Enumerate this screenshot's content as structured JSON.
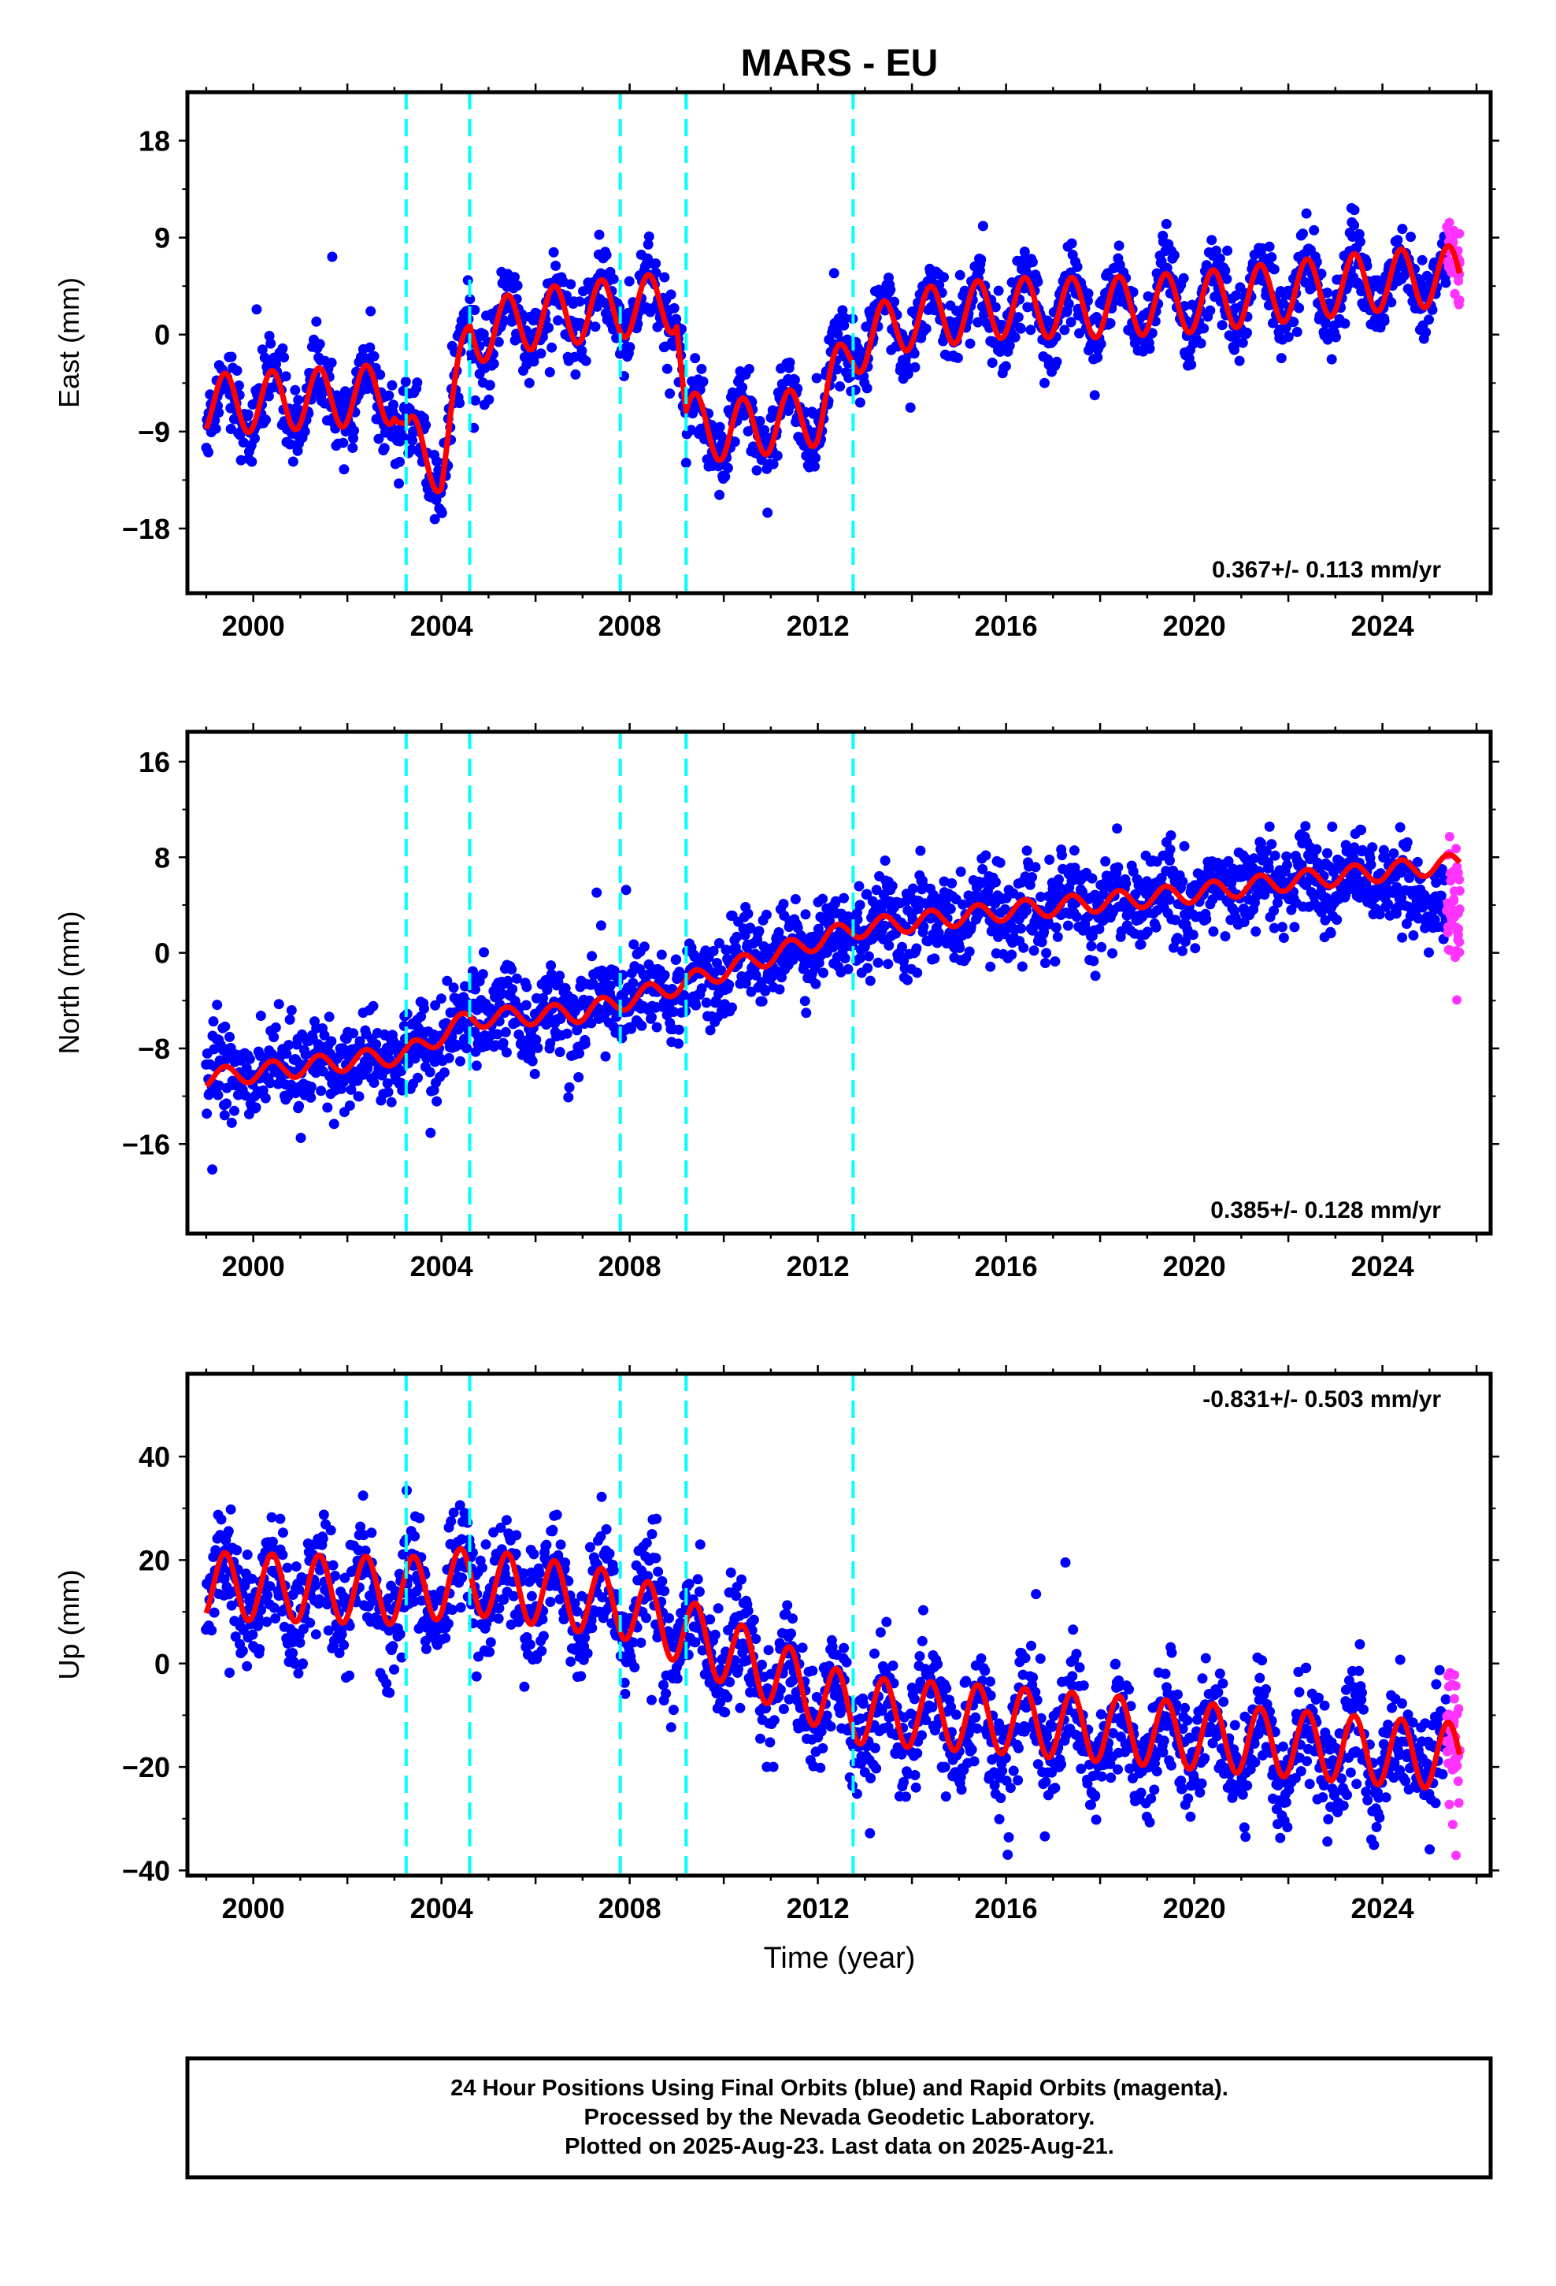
{
  "title": "MARS - EU",
  "xlabel": "Time (year)",
  "footer": [
    "24 Hour Positions Using Final Orbits (blue) and Rapid Orbits (magenta).",
    "Processed by the Nevada Geodetic Laboratory.",
    "Plotted on 2025-Aug-23. Last data on 2025-Aug-21."
  ],
  "colors": {
    "final": "#0000ff",
    "rapid": "#ff33ff",
    "model": "#ff0000",
    "offset": "#00ffff",
    "frame": "#000000"
  },
  "chart_data": [
    {
      "type": "scatter",
      "ylabel": "East (mm)",
      "rate": "0.367+/- 0.113 mm/yr",
      "rate_position": "bottom-right",
      "xlim": [
        1998.6,
        2026.3
      ],
      "ylim": [
        -24,
        22.5
      ],
      "xticks": [
        2000,
        2004,
        2008,
        2012,
        2016,
        2020,
        2024
      ],
      "yticks": [
        18,
        9,
        0,
        -9,
        -18
      ],
      "offsets": [
        2003.25,
        2004.6,
        2007.8,
        2009.2,
        2012.75
      ],
      "final_range": [
        1999.0,
        2025.35
      ],
      "rapid_range": [
        2025.35,
        2025.65
      ],
      "series": [
        {
          "type": "scatter",
          "x": [
            1999,
            2001,
            2003,
            2003.25,
            2004,
            2004.6,
            2006,
            2007.8,
            2009,
            2009.2,
            2010,
            2012,
            2012.75,
            2014,
            2016,
            2018,
            2020,
            2022,
            2024,
            2025.6
          ],
          "values": [
            -6.5,
            -6,
            -5.5,
            -10,
            -12,
            0,
            1.5,
            2.5,
            3,
            -8,
            -9,
            -7.5,
            -1,
            1.5,
            2.5,
            2.5,
            3,
            4,
            5,
            5.5
          ]
        },
        {
          "type": "line",
          "x": [
            1999,
            2001,
            2003,
            2003.25,
            2004,
            2004.6,
            2006,
            2007.8,
            2009,
            2009.2,
            2010,
            2012,
            2012.75,
            2014,
            2016,
            2018,
            2020,
            2022,
            2024,
            2025.6
          ],
          "values": [
            -6.5,
            -6,
            -5.5,
            -10,
            -12,
            0,
            1.5,
            2.5,
            3,
            -8,
            -9,
            -7.5,
            -1,
            1.5,
            2.5,
            2.5,
            3,
            4,
            5,
            5.5
          ],
          "annual_amplitude": 2.8
        }
      ],
      "scatter_spread": 1.7
    },
    {
      "type": "scatter",
      "ylabel": "North (mm)",
      "rate": "0.385+/- 0.128 mm/yr",
      "rate_position": "bottom-right",
      "xlim": [
        1998.6,
        2026.3
      ],
      "ylim": [
        -23.5,
        18.5
      ],
      "xticks": [
        2000,
        2004,
        2008,
        2012,
        2016,
        2020,
        2024
      ],
      "yticks": [
        16,
        8,
        0,
        -8,
        -16
      ],
      "offsets": [
        2003.25,
        2004.6,
        2007.8,
        2009.2,
        2012.75
      ],
      "final_range": [
        1999.0,
        2025.35
      ],
      "rapid_range": [
        2025.35,
        2025.65
      ],
      "series": [
        {
          "type": "scatter",
          "x": [
            1999,
            2003.25,
            2004.6,
            2007,
            2009.2,
            2012.75,
            2016,
            2020,
            2022,
            2024,
            2025.6
          ],
          "values": [
            -10.5,
            -8.5,
            -5.5,
            -5,
            -2.5,
            2,
            3.5,
            5,
            6.5,
            6,
            3.5
          ]
        },
        {
          "type": "line",
          "x": [
            1999,
            2003.25,
            2004.6,
            2007,
            2009.2,
            2012.75,
            2016,
            2020,
            2022,
            2024,
            2025.6
          ],
          "values": [
            -10.5,
            -8.5,
            -5.5,
            -5,
            -2.5,
            2,
            3.5,
            5,
            6,
            6.8,
            7.5
          ],
          "annual_amplitude": 0.8
        }
      ],
      "scatter_spread": 1.9
    },
    {
      "type": "scatter",
      "ylabel": "Up (mm)",
      "rate": "-0.831+/- 0.503 mm/yr",
      "rate_position": "top-right",
      "xlim": [
        1998.6,
        2026.3
      ],
      "ylim": [
        -41,
        56
      ],
      "xticks": [
        2000,
        2004,
        2008,
        2012,
        2016,
        2020,
        2024
      ],
      "yticks": [
        40,
        20,
        0,
        -20,
        -40
      ],
      "offsets": [
        2003.25,
        2004.6,
        2007.8,
        2009.2,
        2012.75
      ],
      "final_range": [
        1999.0,
        2025.35
      ],
      "rapid_range": [
        2025.35,
        2025.65
      ],
      "series": [
        {
          "type": "scatter",
          "x": [
            1999,
            2003.25,
            2004.6,
            2008,
            2012.75,
            2016,
            2020,
            2024,
            2025.6
          ],
          "values": [
            15,
            12,
            16,
            11,
            -10,
            -13,
            -15,
            -18,
            -18
          ]
        },
        {
          "type": "line",
          "x": [
            1999,
            2003.25,
            2004.6,
            2008,
            2012.75,
            2016,
            2020,
            2024,
            2025.6
          ],
          "values": [
            15,
            14,
            16,
            11,
            -9,
            -11,
            -14,
            -17,
            -18
          ],
          "annual_amplitude": 6.5
        }
      ],
      "scatter_spread": 5.5
    }
  ]
}
